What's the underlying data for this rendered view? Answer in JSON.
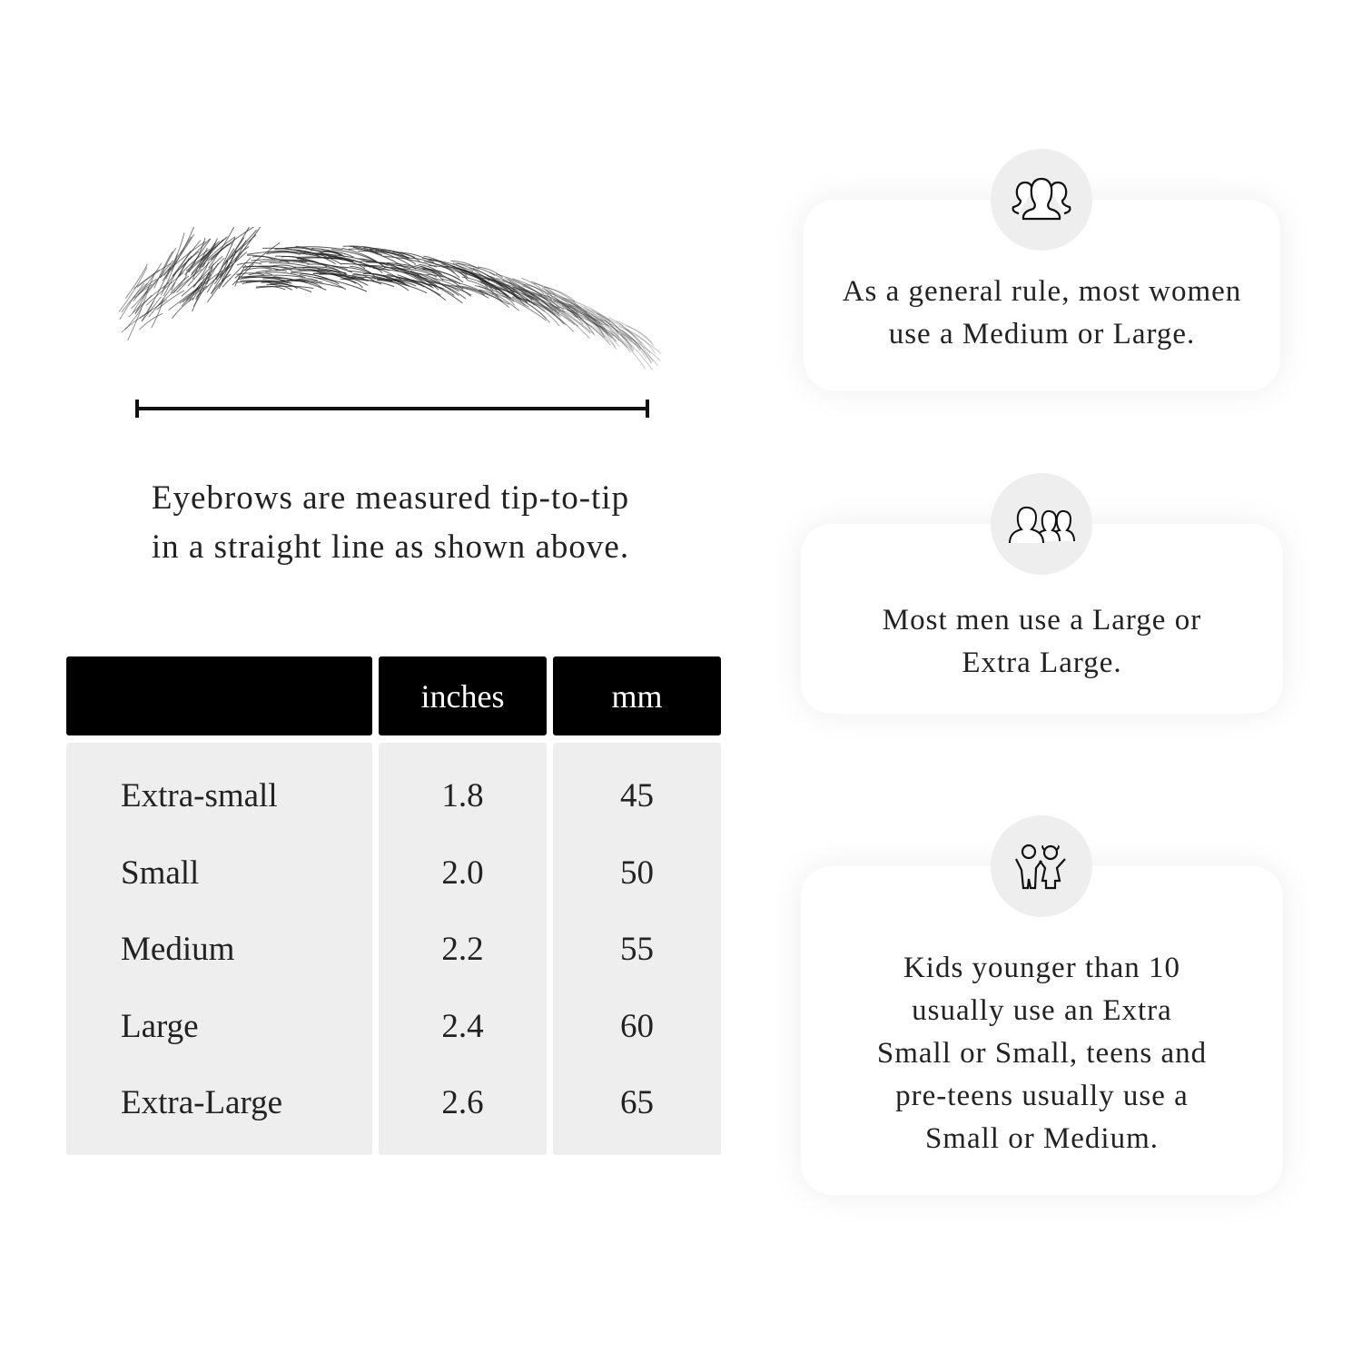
{
  "caption": {
    "line1": "Eyebrows are measured tip-to-tip",
    "line2": "in a straight line as shown above."
  },
  "table": {
    "headers": [
      "",
      "inches",
      "mm"
    ],
    "rows": [
      {
        "size": "Extra-small",
        "inches": "1.8",
        "mm": "45"
      },
      {
        "size": "Small",
        "inches": "2.0",
        "mm": "50"
      },
      {
        "size": "Medium",
        "inches": "2.2",
        "mm": "55"
      },
      {
        "size": "Large",
        "inches": "2.4",
        "mm": "60"
      },
      {
        "size": "Extra-Large",
        "inches": "2.6",
        "mm": "65"
      }
    ]
  },
  "cards": [
    {
      "icon": "women-group-icon",
      "line1": "As a general rule, most women",
      "line2": "use a Medium or Large."
    },
    {
      "icon": "men-group-icon",
      "line1": "Most men use a Large or",
      "line2": "Extra Large."
    },
    {
      "icon": "kids-icon",
      "lines": [
        "Kids younger than 10",
        "usually use an Extra",
        "Small or Small, teens and",
        "pre-teens usually use a",
        "Small or Medium."
      ]
    }
  ]
}
